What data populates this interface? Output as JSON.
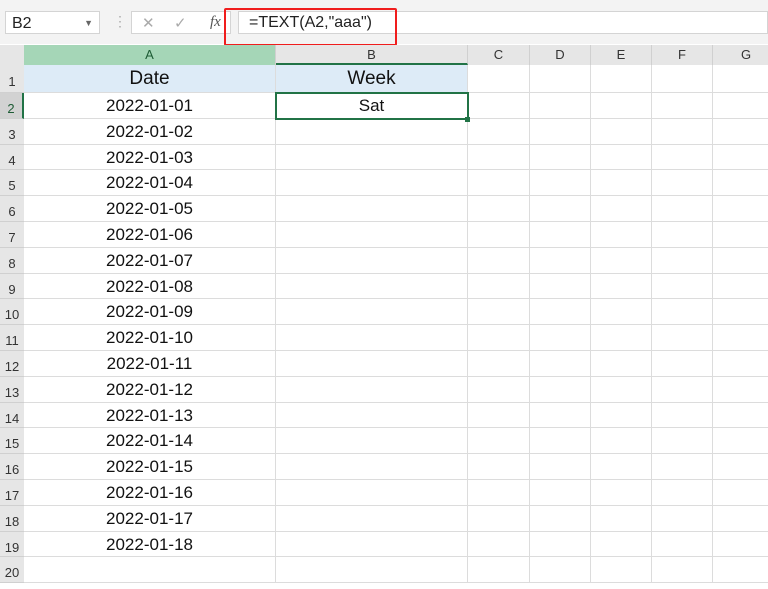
{
  "name_box": "B2",
  "formula": "=TEXT(A2,\"aaa\")",
  "fx_label": "fx",
  "columns": [
    "A",
    "B",
    "C",
    "D",
    "E",
    "F",
    "G"
  ],
  "headers": {
    "a": "Date",
    "b": "Week"
  },
  "b2": "Sat",
  "dates": [
    "2022-01-01",
    "2022-01-02",
    "2022-01-03",
    "2022-01-04",
    "2022-01-05",
    "2022-01-06",
    "2022-01-07",
    "2022-01-08",
    "2022-01-09",
    "2022-01-10",
    "2022-01-11",
    "2022-01-12",
    "2022-01-13",
    "2022-01-14",
    "2022-01-15",
    "2022-01-16",
    "2022-01-17",
    "2022-01-18"
  ],
  "highlight_color": "#f01d1d",
  "selection_color": "#217346"
}
